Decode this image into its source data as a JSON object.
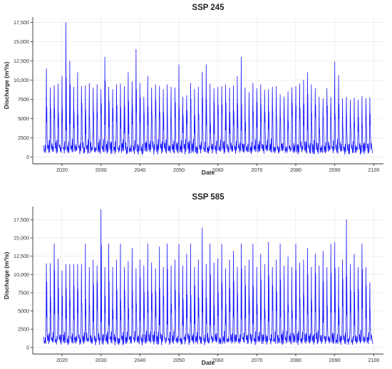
{
  "chart_data": [
    {
      "type": "line",
      "title": "SSP 245",
      "xlabel": "Date",
      "ylabel": "Discharge (m³/s)",
      "xlim": [
        2012.5,
        2102.5
      ],
      "ylim": [
        -900,
        18200
      ],
      "xticks": [
        2020,
        2030,
        2040,
        2050,
        2060,
        2070,
        2080,
        2090,
        2100
      ],
      "yticks": [
        0,
        2500,
        5000,
        7500,
        10000,
        12500,
        15000,
        17500
      ],
      "ytick_labels": [
        "0",
        "2500",
        "5000",
        "7500",
        "10,000",
        "12,500",
        "15,000",
        "17,500"
      ],
      "grid": true,
      "color": "#1414ff",
      "start_year": 2015.3,
      "end_year": 2099.7,
      "annual_peaks": [
        {
          "x": 2016,
          "y": 11500
        },
        {
          "x": 2017,
          "y": 9000
        },
        {
          "x": 2018,
          "y": 9300
        },
        {
          "x": 2019,
          "y": 9500
        },
        {
          "x": 2020,
          "y": 10500
        },
        {
          "x": 2021,
          "y": 17500
        },
        {
          "x": 2022,
          "y": 12500
        },
        {
          "x": 2023,
          "y": 9100
        },
        {
          "x": 2024,
          "y": 11000
        },
        {
          "x": 2025,
          "y": 9200
        },
        {
          "x": 2026,
          "y": 9300
        },
        {
          "x": 2027,
          "y": 9600
        },
        {
          "x": 2028,
          "y": 9000
        },
        {
          "x": 2029,
          "y": 9400
        },
        {
          "x": 2030,
          "y": 8800
        },
        {
          "x": 2031,
          "y": 13000
        },
        {
          "x": 2032,
          "y": 9100
        },
        {
          "x": 2033,
          "y": 8800
        },
        {
          "x": 2034,
          "y": 9400
        },
        {
          "x": 2035,
          "y": 9500
        },
        {
          "x": 2036,
          "y": 9200
        },
        {
          "x": 2037,
          "y": 11000
        },
        {
          "x": 2038,
          "y": 9800
        },
        {
          "x": 2039,
          "y": 14000
        },
        {
          "x": 2040,
          "y": 9600
        },
        {
          "x": 2041,
          "y": 7800
        },
        {
          "x": 2042,
          "y": 10500
        },
        {
          "x": 2043,
          "y": 9000
        },
        {
          "x": 2044,
          "y": 9400
        },
        {
          "x": 2045,
          "y": 9200
        },
        {
          "x": 2046,
          "y": 8800
        },
        {
          "x": 2047,
          "y": 9400
        },
        {
          "x": 2048,
          "y": 9100
        },
        {
          "x": 2049,
          "y": 9000
        },
        {
          "x": 2050,
          "y": 12000
        },
        {
          "x": 2051,
          "y": 7800
        },
        {
          "x": 2052,
          "y": 8000
        },
        {
          "x": 2053,
          "y": 9600
        },
        {
          "x": 2054,
          "y": 8800
        },
        {
          "x": 2055,
          "y": 9100
        },
        {
          "x": 2056,
          "y": 11000
        },
        {
          "x": 2057,
          "y": 12000
        },
        {
          "x": 2058,
          "y": 9500
        },
        {
          "x": 2059,
          "y": 8900
        },
        {
          "x": 2060,
          "y": 9100
        },
        {
          "x": 2061,
          "y": 9200
        },
        {
          "x": 2062,
          "y": 9400
        },
        {
          "x": 2063,
          "y": 9000
        },
        {
          "x": 2064,
          "y": 9300
        },
        {
          "x": 2065,
          "y": 10500
        },
        {
          "x": 2066,
          "y": 13000
        },
        {
          "x": 2067,
          "y": 9000
        },
        {
          "x": 2068,
          "y": 8400
        },
        {
          "x": 2069,
          "y": 9600
        },
        {
          "x": 2070,
          "y": 8900
        },
        {
          "x": 2071,
          "y": 9400
        },
        {
          "x": 2072,
          "y": 8700
        },
        {
          "x": 2073,
          "y": 8800
        },
        {
          "x": 2074,
          "y": 9100
        },
        {
          "x": 2075,
          "y": 9200
        },
        {
          "x": 2076,
          "y": 8100
        },
        {
          "x": 2077,
          "y": 7800
        },
        {
          "x": 2078,
          "y": 8500
        },
        {
          "x": 2079,
          "y": 9000
        },
        {
          "x": 2080,
          "y": 9200
        },
        {
          "x": 2081,
          "y": 9500
        },
        {
          "x": 2082,
          "y": 10000
        },
        {
          "x": 2083,
          "y": 11000
        },
        {
          "x": 2084,
          "y": 9400
        },
        {
          "x": 2085,
          "y": 8900
        },
        {
          "x": 2086,
          "y": 7800
        },
        {
          "x": 2087,
          "y": 7600
        },
        {
          "x": 2088,
          "y": 8900
        },
        {
          "x": 2089,
          "y": 7800
        },
        {
          "x": 2090,
          "y": 12400
        },
        {
          "x": 2091,
          "y": 10600
        },
        {
          "x": 2092,
          "y": 7600
        },
        {
          "x": 2093,
          "y": 7800
        },
        {
          "x": 2094,
          "y": 7400
        },
        {
          "x": 2095,
          "y": 7700
        },
        {
          "x": 2096,
          "y": 7400
        },
        {
          "x": 2097,
          "y": 7900
        },
        {
          "x": 2098,
          "y": 7600
        },
        {
          "x": 2099,
          "y": 7700
        }
      ]
    },
    {
      "type": "line",
      "title": "SSP 585",
      "xlabel": "Date",
      "ylabel": "Discharge (m³/s)",
      "xlim": [
        2012.5,
        2102.5
      ],
      "ylim": [
        -900,
        19300
      ],
      "xticks": [
        2020,
        2030,
        2040,
        2050,
        2060,
        2070,
        2080,
        2090,
        2100
      ],
      "yticks": [
        0,
        2500,
        5000,
        7500,
        10000,
        12500,
        15000,
        17500
      ],
      "ytick_labels": [
        "0",
        "2500",
        "5000",
        "7500",
        "10,000",
        "12,500",
        "15,000",
        "17,500"
      ],
      "grid": true,
      "color": "#1414ff",
      "start_year": 2015.3,
      "end_year": 2099.8,
      "annual_peaks": [
        {
          "x": 2016,
          "y": 11500
        },
        {
          "x": 2017,
          "y": 11500
        },
        {
          "x": 2018,
          "y": 14200
        },
        {
          "x": 2019,
          "y": 12100
        },
        {
          "x": 2020,
          "y": 10500
        },
        {
          "x": 2021,
          "y": 11400
        },
        {
          "x": 2022,
          "y": 11400
        },
        {
          "x": 2023,
          "y": 11400
        },
        {
          "x": 2024,
          "y": 11400
        },
        {
          "x": 2025,
          "y": 11400
        },
        {
          "x": 2026,
          "y": 14200
        },
        {
          "x": 2027,
          "y": 11000
        },
        {
          "x": 2028,
          "y": 12000
        },
        {
          "x": 2029,
          "y": 11200
        },
        {
          "x": 2030,
          "y": 18900
        },
        {
          "x": 2031,
          "y": 11000
        },
        {
          "x": 2032,
          "y": 14200
        },
        {
          "x": 2033,
          "y": 11000
        },
        {
          "x": 2034,
          "y": 12000
        },
        {
          "x": 2035,
          "y": 14200
        },
        {
          "x": 2036,
          "y": 11000
        },
        {
          "x": 2037,
          "y": 11800
        },
        {
          "x": 2038,
          "y": 13600
        },
        {
          "x": 2039,
          "y": 10800
        },
        {
          "x": 2040,
          "y": 12000
        },
        {
          "x": 2041,
          "y": 11200
        },
        {
          "x": 2042,
          "y": 14200
        },
        {
          "x": 2043,
          "y": 11600
        },
        {
          "x": 2044,
          "y": 10800
        },
        {
          "x": 2045,
          "y": 13800
        },
        {
          "x": 2046,
          "y": 11000
        },
        {
          "x": 2047,
          "y": 14200
        },
        {
          "x": 2048,
          "y": 11200
        },
        {
          "x": 2049,
          "y": 12000
        },
        {
          "x": 2050,
          "y": 14200
        },
        {
          "x": 2051,
          "y": 11200
        },
        {
          "x": 2052,
          "y": 12800
        },
        {
          "x": 2053,
          "y": 14200
        },
        {
          "x": 2054,
          "y": 11000
        },
        {
          "x": 2055,
          "y": 12000
        },
        {
          "x": 2056,
          "y": 16400
        },
        {
          "x": 2057,
          "y": 11400
        },
        {
          "x": 2058,
          "y": 14200
        },
        {
          "x": 2059,
          "y": 11600
        },
        {
          "x": 2060,
          "y": 12200
        },
        {
          "x": 2061,
          "y": 14200
        },
        {
          "x": 2062,
          "y": 10800
        },
        {
          "x": 2063,
          "y": 12000
        },
        {
          "x": 2064,
          "y": 13200
        },
        {
          "x": 2065,
          "y": 11000
        },
        {
          "x": 2066,
          "y": 14200
        },
        {
          "x": 2067,
          "y": 11200
        },
        {
          "x": 2068,
          "y": 12000
        },
        {
          "x": 2069,
          "y": 14200
        },
        {
          "x": 2070,
          "y": 11000
        },
        {
          "x": 2071,
          "y": 12800
        },
        {
          "x": 2072,
          "y": 11400
        },
        {
          "x": 2073,
          "y": 14400
        },
        {
          "x": 2074,
          "y": 11000
        },
        {
          "x": 2075,
          "y": 12000
        },
        {
          "x": 2076,
          "y": 14200
        },
        {
          "x": 2077,
          "y": 11200
        },
        {
          "x": 2078,
          "y": 12400
        },
        {
          "x": 2079,
          "y": 11000
        },
        {
          "x": 2080,
          "y": 14200
        },
        {
          "x": 2081,
          "y": 11600
        },
        {
          "x": 2082,
          "y": 12000
        },
        {
          "x": 2083,
          "y": 13600
        },
        {
          "x": 2084,
          "y": 11000
        },
        {
          "x": 2085,
          "y": 12800
        },
        {
          "x": 2086,
          "y": 11200
        },
        {
          "x": 2087,
          "y": 13200
        },
        {
          "x": 2088,
          "y": 11000
        },
        {
          "x": 2089,
          "y": 14200
        },
        {
          "x": 2090,
          "y": 14400
        },
        {
          "x": 2091,
          "y": 11000
        },
        {
          "x": 2092,
          "y": 12000
        },
        {
          "x": 2093,
          "y": 17500
        },
        {
          "x": 2094,
          "y": 11400
        },
        {
          "x": 2095,
          "y": 12800
        },
        {
          "x": 2096,
          "y": 11000
        },
        {
          "x": 2097,
          "y": 14200
        },
        {
          "x": 2098,
          "y": 11000
        },
        {
          "x": 2099,
          "y": 8900
        }
      ]
    }
  ]
}
